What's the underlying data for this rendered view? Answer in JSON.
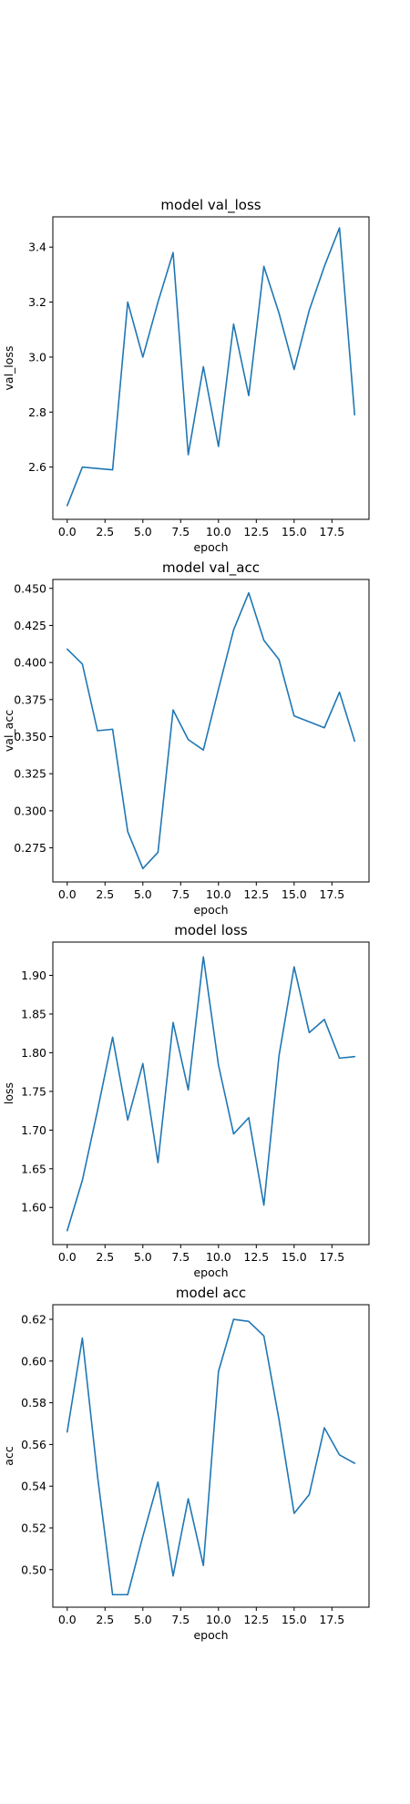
{
  "chart_data": [
    {
      "type": "line",
      "title": "model val_loss",
      "xlabel": "epoch",
      "ylabel": "val_loss",
      "xlim": [
        -0.95,
        19.95
      ],
      "ylim": [
        2.41,
        3.51
      ],
      "xticks": [
        0.0,
        2.5,
        5.0,
        7.5,
        10.0,
        12.5,
        15.0,
        17.5
      ],
      "xtick_labels": [
        "0.0",
        "2.5",
        "5.0",
        "7.5",
        "10.0",
        "12.5",
        "15.0",
        "17.5"
      ],
      "yticks": [
        2.6,
        2.8,
        3.0,
        3.2,
        3.4
      ],
      "ytick_labels": [
        "2.6",
        "2.8",
        "3.0",
        "3.2",
        "3.4"
      ],
      "grid": false,
      "color": "#1f77b4",
      "x": [
        0,
        1,
        2,
        3,
        4,
        5,
        6,
        7,
        8,
        9,
        10,
        11,
        12,
        13,
        14,
        15,
        16,
        17,
        18,
        19
      ],
      "values": [
        2.46,
        2.6,
        2.595,
        2.59,
        3.2,
        3.0,
        3.2,
        3.38,
        2.645,
        2.965,
        2.675,
        3.12,
        2.86,
        3.33,
        3.16,
        2.955,
        3.17,
        3.33,
        3.47,
        2.79
      ]
    },
    {
      "type": "line",
      "title": "model val_acc",
      "xlabel": "epoch",
      "ylabel": "val_acc",
      "xlim": [
        -0.95,
        19.95
      ],
      "ylim": [
        0.252,
        0.456
      ],
      "xticks": [
        0.0,
        2.5,
        5.0,
        7.5,
        10.0,
        12.5,
        15.0,
        17.5
      ],
      "xtick_labels": [
        "0.0",
        "2.5",
        "5.0",
        "7.5",
        "10.0",
        "12.5",
        "15.0",
        "17.5"
      ],
      "yticks": [
        0.275,
        0.3,
        0.325,
        0.35,
        0.375,
        0.4,
        0.425,
        0.45
      ],
      "ytick_labels": [
        "0.275",
        "0.300",
        "0.325",
        "0.350",
        "0.375",
        "0.400",
        "0.425",
        "0.450"
      ],
      "grid": false,
      "color": "#1f77b4",
      "x": [
        0,
        1,
        2,
        3,
        4,
        5,
        6,
        7,
        8,
        9,
        10,
        11,
        12,
        13,
        14,
        15,
        16,
        17,
        18,
        19
      ],
      "values": [
        0.409,
        0.399,
        0.354,
        0.355,
        0.286,
        0.261,
        0.272,
        0.368,
        0.348,
        0.341,
        0.382,
        0.422,
        0.447,
        0.415,
        0.402,
        0.364,
        0.36,
        0.356,
        0.38,
        0.347
      ]
    },
    {
      "type": "line",
      "title": "model loss",
      "xlabel": "epoch",
      "ylabel": "loss",
      "xlim": [
        -0.95,
        19.95
      ],
      "ylim": [
        1.552,
        1.943
      ],
      "xticks": [
        0.0,
        2.5,
        5.0,
        7.5,
        10.0,
        12.5,
        15.0,
        17.5
      ],
      "xtick_labels": [
        "0.0",
        "2.5",
        "5.0",
        "7.5",
        "10.0",
        "12.5",
        "15.0",
        "17.5"
      ],
      "yticks": [
        1.6,
        1.65,
        1.7,
        1.75,
        1.8,
        1.85,
        1.9
      ],
      "ytick_labels": [
        "1.60",
        "1.65",
        "1.70",
        "1.75",
        "1.80",
        "1.85",
        "1.90"
      ],
      "grid": false,
      "color": "#1f77b4",
      "x": [
        0,
        1,
        2,
        3,
        4,
        5,
        6,
        7,
        8,
        9,
        10,
        11,
        12,
        13,
        14,
        15,
        16,
        17,
        18,
        19
      ],
      "values": [
        1.57,
        1.635,
        1.725,
        1.82,
        1.713,
        1.786,
        1.658,
        1.839,
        1.752,
        1.924,
        1.784,
        1.695,
        1.716,
        1.603,
        1.796,
        1.911,
        1.826,
        1.843,
        1.793,
        1.795
      ]
    },
    {
      "type": "line",
      "title": "model acc",
      "xlabel": "epoch",
      "ylabel": "acc",
      "xlim": [
        -0.95,
        19.95
      ],
      "ylim": [
        0.482,
        0.627
      ],
      "xticks": [
        0.0,
        2.5,
        5.0,
        7.5,
        10.0,
        12.5,
        15.0,
        17.5
      ],
      "xtick_labels": [
        "0.0",
        "2.5",
        "5.0",
        "7.5",
        "10.0",
        "12.5",
        "15.0",
        "17.5"
      ],
      "yticks": [
        0.5,
        0.52,
        0.54,
        0.56,
        0.58,
        0.6,
        0.62
      ],
      "ytick_labels": [
        "0.50",
        "0.52",
        "0.54",
        "0.56",
        "0.58",
        "0.60",
        "0.62"
      ],
      "grid": false,
      "color": "#1f77b4",
      "x": [
        0,
        1,
        2,
        3,
        4,
        5,
        6,
        7,
        8,
        9,
        10,
        11,
        12,
        13,
        14,
        15,
        16,
        17,
        18,
        19
      ],
      "values": [
        0.566,
        0.611,
        0.545,
        0.488,
        0.488,
        0.516,
        0.542,
        0.497,
        0.534,
        0.502,
        0.595,
        0.62,
        0.619,
        0.612,
        0.572,
        0.527,
        0.536,
        0.568,
        0.555,
        0.551
      ]
    }
  ]
}
